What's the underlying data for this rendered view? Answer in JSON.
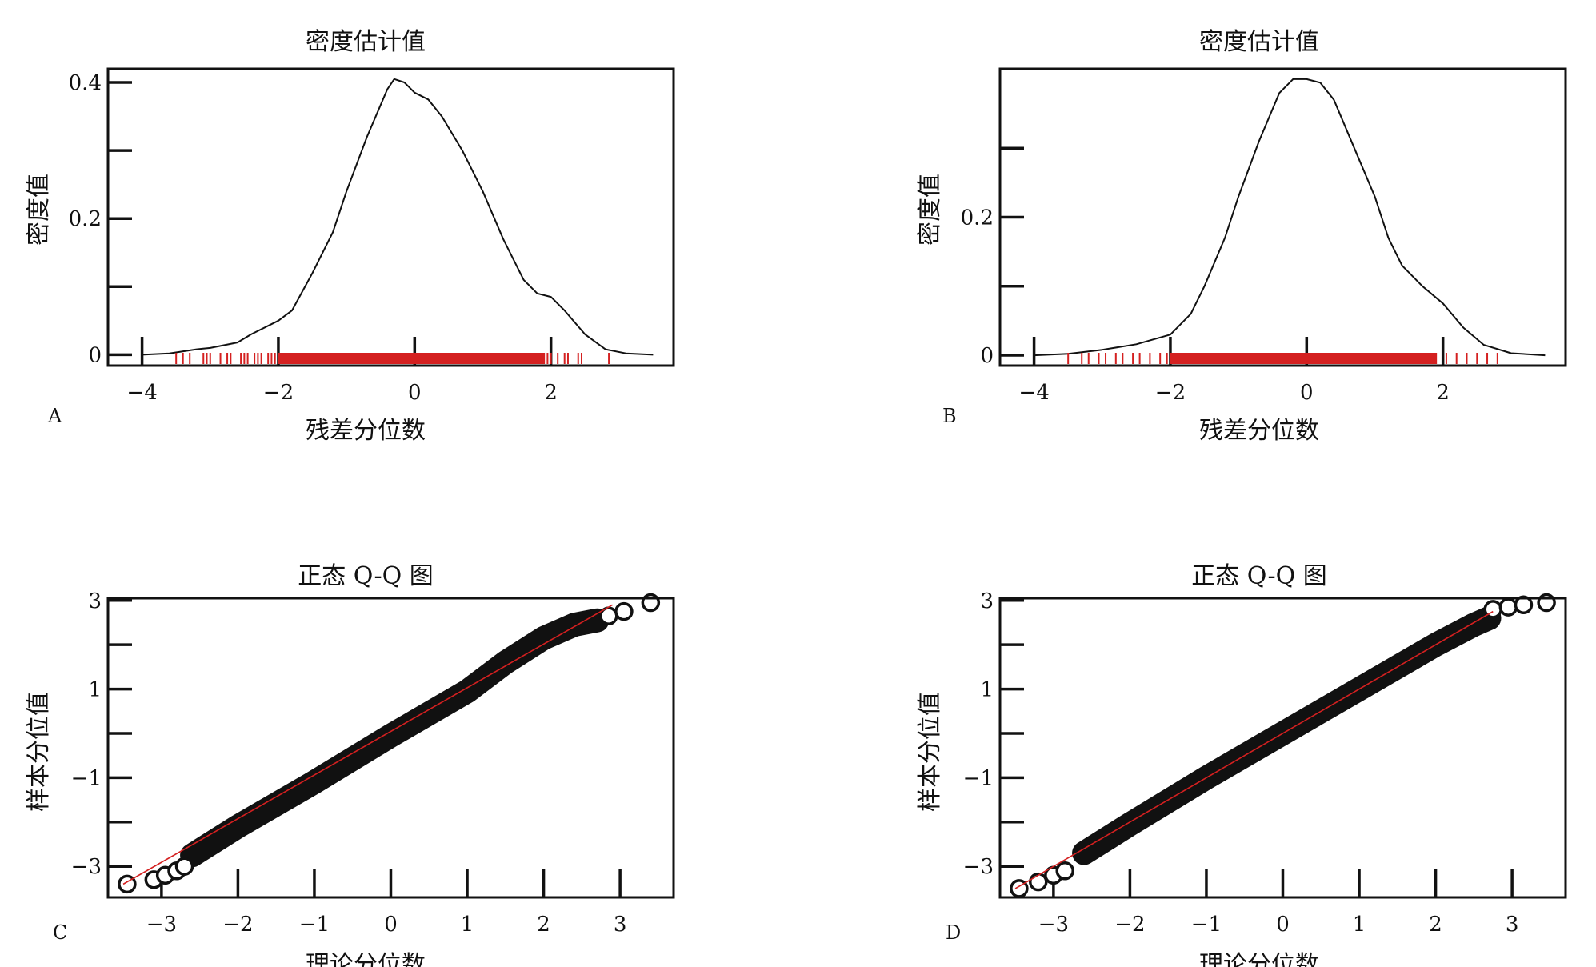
{
  "chart_data": [
    {
      "panel_label": "A",
      "type": "line",
      "title": "密度估计值",
      "xlabel": "残差分位数",
      "ylabel": "密度值",
      "xlim": [
        -4.5,
        3.8
      ],
      "ylim": [
        -0.016,
        0.42
      ],
      "x_ticks": [
        -4,
        -2,
        0,
        2
      ],
      "x_tick_labels": [
        "−4",
        "−2",
        "0",
        "2"
      ],
      "y_ticks": [
        0,
        0.1,
        0.2,
        0.3,
        0.4
      ],
      "y_tick_labels": [
        "0",
        "",
        "0.2",
        "",
        "0.4"
      ],
      "line_color": "#111111",
      "rug_color": "#d42020",
      "series": [
        {
          "x": [
            -4.0,
            -3.6,
            -3.2,
            -3.0,
            -2.6,
            -2.4,
            -2.0,
            -1.8,
            -1.5,
            -1.2,
            -1.0,
            -0.7,
            -0.4,
            -0.3,
            -0.15,
            0.0,
            0.2,
            0.4,
            0.7,
            1.0,
            1.3,
            1.6,
            1.8,
            2.0,
            2.2,
            2.5,
            2.8,
            3.1,
            3.5
          ],
          "y": [
            0.0,
            0.002,
            0.008,
            0.01,
            0.018,
            0.03,
            0.05,
            0.065,
            0.12,
            0.18,
            0.24,
            0.32,
            0.39,
            0.405,
            0.4,
            0.385,
            0.375,
            0.35,
            0.3,
            0.24,
            0.17,
            0.11,
            0.09,
            0.085,
            0.065,
            0.03,
            0.008,
            0.002,
            0.0
          ]
        }
      ],
      "rug": [
        -3.5,
        -3.4,
        -3.3,
        -3.1,
        -3.05,
        -3.0,
        -2.85,
        -2.75,
        -2.7,
        -2.55,
        -2.5,
        -2.45,
        -2.35,
        -2.3,
        -2.25,
        -2.15,
        -2.1,
        -2.05,
        -1.95,
        -1.9,
        -1.7,
        -1.55,
        -1.4,
        -1.25,
        -1.1,
        -0.95,
        -0.8,
        -0.65,
        -0.5,
        -0.35,
        -0.2,
        -0.05,
        0.1,
        0.25,
        0.4,
        0.55,
        0.7,
        0.85,
        1.0,
        1.15,
        1.3,
        1.45,
        1.6,
        1.75,
        1.9,
        1.95,
        2.0,
        2.1,
        2.2,
        2.25,
        2.4,
        2.45,
        2.85
      ]
    },
    {
      "panel_label": "B",
      "type": "line",
      "title": "密度估计值",
      "xlabel": "残差分位数",
      "ylabel": "密度值",
      "xlim": [
        -4.5,
        3.8
      ],
      "ylim": [
        -0.015,
        0.415
      ],
      "x_ticks": [
        -4,
        -2,
        0,
        2
      ],
      "x_tick_labels": [
        "−4",
        "−2",
        "0",
        "2"
      ],
      "y_ticks": [
        0,
        0.1,
        0.2,
        0.3
      ],
      "y_tick_labels": [
        "0",
        "",
        "0.2",
        ""
      ],
      "line_color": "#111111",
      "rug_color": "#d42020",
      "series": [
        {
          "x": [
            -4.0,
            -3.5,
            -3.0,
            -2.5,
            -2.0,
            -1.7,
            -1.5,
            -1.2,
            -1.0,
            -0.7,
            -0.4,
            -0.2,
            0.0,
            0.2,
            0.4,
            0.7,
            1.0,
            1.2,
            1.4,
            1.7,
            2.0,
            2.3,
            2.6,
            3.0,
            3.5
          ],
          "y": [
            0.0,
            0.002,
            0.008,
            0.016,
            0.03,
            0.06,
            0.1,
            0.17,
            0.23,
            0.31,
            0.38,
            0.4,
            0.4,
            0.395,
            0.37,
            0.3,
            0.23,
            0.17,
            0.13,
            0.1,
            0.075,
            0.04,
            0.015,
            0.003,
            0.0
          ]
        }
      ],
      "rug": [
        -3.5,
        -3.3,
        -3.2,
        -3.05,
        -2.95,
        -2.8,
        -2.7,
        -2.55,
        -2.45,
        -2.3,
        -2.15,
        -2.05,
        -1.95,
        -1.85,
        -1.7,
        -1.55,
        -1.4,
        -1.25,
        -1.1,
        -0.95,
        -0.8,
        -0.65,
        -0.5,
        -0.35,
        -0.2,
        -0.05,
        0.1,
        0.25,
        0.4,
        0.55,
        0.7,
        0.85,
        1.0,
        1.15,
        1.3,
        1.45,
        1.6,
        1.75,
        1.9,
        2.05,
        2.2,
        2.35,
        2.5,
        2.65,
        2.8
      ]
    },
    {
      "panel_label": "C",
      "type": "scatter",
      "title": "正态 Q-Q 图",
      "xlabel": "理论分位数",
      "ylabel": "样本分位值",
      "xlim": [
        -3.7,
        3.7
      ],
      "ylim": [
        -3.7,
        3.05
      ],
      "x_ticks": [
        -3,
        -2,
        -1,
        0,
        1,
        2,
        3
      ],
      "x_tick_labels": [
        "−3",
        "−2",
        "−1",
        "0",
        "1",
        "2",
        "3"
      ],
      "y_ticks": [
        -3,
        -2,
        -1,
        0,
        1,
        2,
        3
      ],
      "y_tick_labels": [
        "−3",
        "",
        "−1",
        "",
        "1",
        "",
        "3"
      ],
      "point_color": "#111111",
      "line_color": "#d42020",
      "reference_line": [
        [
          -3.5,
          -3.4
        ],
        [
          2.9,
          2.9
        ]
      ],
      "outliers": [
        [
          -3.45,
          -3.4
        ],
        [
          -3.1,
          -3.3
        ],
        [
          -2.95,
          -3.2
        ],
        [
          -2.8,
          -3.1
        ],
        [
          -2.7,
          -3.0
        ],
        [
          2.85,
          2.65
        ],
        [
          3.05,
          2.75
        ],
        [
          3.4,
          2.95
        ]
      ],
      "band": {
        "x": [
          -2.6,
          -2.0,
          -1.0,
          0.0,
          1.0,
          1.5,
          2.0,
          2.4,
          2.7
        ],
        "y": [
          -2.75,
          -2.1,
          -1.1,
          -0.05,
          0.95,
          1.6,
          2.15,
          2.45,
          2.55
        ]
      }
    },
    {
      "panel_label": "D",
      "type": "scatter",
      "title": "正态 Q-Q 图",
      "xlabel": "理论分位数",
      "ylabel": "样本分位值",
      "xlim": [
        -3.7,
        3.7
      ],
      "ylim": [
        -3.7,
        3.05
      ],
      "x_ticks": [
        -3,
        -2,
        -1,
        0,
        1,
        2,
        3
      ],
      "x_tick_labels": [
        "−3",
        "−2",
        "−1",
        "0",
        "1",
        "2",
        "3"
      ],
      "y_ticks": [
        -3,
        -2,
        -1,
        0,
        1,
        2,
        3
      ],
      "y_tick_labels": [
        "−3",
        "",
        "−1",
        "",
        "1",
        "",
        "3"
      ],
      "point_color": "#111111",
      "line_color": "#d42020",
      "reference_line": [
        [
          -3.5,
          -3.5
        ],
        [
          2.75,
          2.75
        ]
      ],
      "outliers": [
        [
          -3.45,
          -3.5
        ],
        [
          -3.2,
          -3.35
        ],
        [
          -3.0,
          -3.2
        ],
        [
          -2.85,
          -3.1
        ],
        [
          2.75,
          2.8
        ],
        [
          2.95,
          2.85
        ],
        [
          3.15,
          2.9
        ],
        [
          3.45,
          2.95
        ]
      ],
      "band": {
        "x": [
          -2.6,
          -2.0,
          -1.0,
          0.0,
          1.0,
          2.0,
          2.5,
          2.7
        ],
        "y": [
          -2.7,
          -2.05,
          -1.0,
          0.0,
          1.0,
          2.0,
          2.45,
          2.6
        ]
      }
    }
  ]
}
